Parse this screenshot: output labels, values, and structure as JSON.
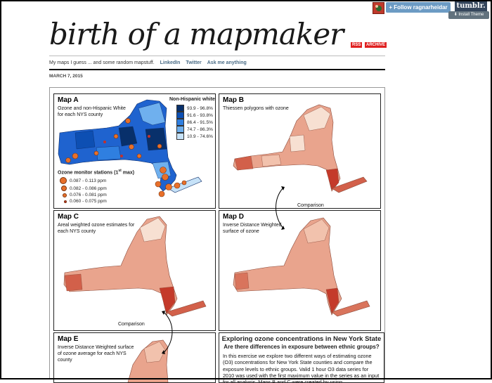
{
  "tumblr": {
    "follow_label": "+ Follow ragnarheidar",
    "logo": "tumblr.",
    "install_label": "Install Theme",
    "avatar_icon": "avatar-icon",
    "colors": {
      "follow": "#6c9bc4",
      "logo": "#35465c",
      "install": "#62727e"
    }
  },
  "blog": {
    "title": "birth of a mapmaker",
    "rss_label": "RSS",
    "archive_label": "ARCHIVE",
    "description": "My maps I guess ... and some random mapstuff.",
    "links": [
      "LinkedIn",
      "Twitter",
      "Ask me anything"
    ],
    "date": "MARCH 7, 2015"
  },
  "poster": {
    "map_a": {
      "title": "Map A",
      "subtitle": "Ozone and non-Hispanic White for each NYS county",
      "legend_title": "Non-Hispanic white",
      "legend": [
        "93.9 - 96.8%",
        "91.6 - 93.8%",
        "86.4 - 91.5%",
        "74.7 - 86.3%",
        "10.9 - 74.6%"
      ],
      "legend_colors": [
        "#08306b",
        "#0d4fb3",
        "#2f7fe0",
        "#6fb0ee",
        "#c6e2f8"
      ],
      "stations_title_prefix": "Ozone monitor stations (1",
      "stations_title_sup": "st",
      "stations_title_suffix": " max)",
      "stations": [
        "0.087 - 0.113 ppm",
        "0.082 - 0.086 ppm",
        "0.076 - 0.081 ppm",
        "0.060 - 0.075 ppm"
      ]
    },
    "map_b": {
      "title": "Map B",
      "subtitle": "Thiessen polygons with ozone"
    },
    "map_c": {
      "title": "Map C",
      "subtitle": "Areal weighted ozone estimates for each NYS county"
    },
    "map_d": {
      "title": "Map D",
      "subtitle": "Inverse Distance Weighted surface of ozone"
    },
    "map_e": {
      "title": "Map E",
      "subtitle": "Inverse Distance Weighted surface of ozone average for each NYS county"
    },
    "comparison_label_1": "Comparison",
    "comparison_label_2": "Comparison",
    "text_panel": {
      "heading": "Exploring ozone concentrations in New York State",
      "subheading": "Are there differences in exposure between ethnic groups?",
      "body": "In this exercise we explore two different ways of estimating ozone (O3) concentrations for New York State counties and compare the exposure levels to ethnic groups. Valid 1 hour O3 data series for 2010 was used with the first maximum value in the series as an input for all analysis. Maps B and C were created by using"
    }
  }
}
